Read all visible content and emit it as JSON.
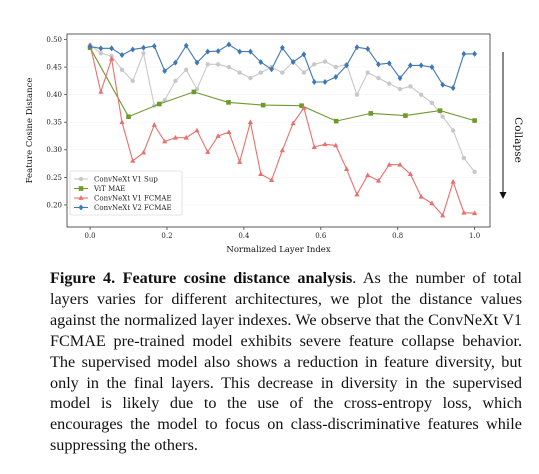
{
  "chart_data": {
    "type": "line",
    "xlabel": "Normalized Layer Index",
    "ylabel": "Feature Cosine Distance",
    "xlim": [
      -0.06,
      1.04
    ],
    "ylim": [
      0.16,
      0.51
    ],
    "xticks": [
      "0.0",
      "0.2",
      "0.4",
      "0.6",
      "0.8",
      "1.0"
    ],
    "yticks": [
      "0.20",
      "0.25",
      "0.30",
      "0.35",
      "0.40",
      "0.45",
      "0.50"
    ],
    "annotation": "Collapse",
    "legend_position": "lower-left",
    "series": [
      {
        "name": "ConvNeXt V1 Sup",
        "color": "#c8c8c8",
        "marker": "circle",
        "x": [
          0.0,
          0.028,
          0.056,
          0.083,
          0.111,
          0.139,
          0.167,
          0.194,
          0.222,
          0.25,
          0.278,
          0.306,
          0.333,
          0.361,
          0.389,
          0.417,
          0.444,
          0.472,
          0.5,
          0.528,
          0.556,
          0.583,
          0.611,
          0.639,
          0.667,
          0.694,
          0.722,
          0.75,
          0.778,
          0.806,
          0.833,
          0.861,
          0.889,
          0.917,
          0.944,
          0.972,
          1.0
        ],
        "y": [
          0.49,
          0.475,
          0.47,
          0.445,
          0.425,
          0.475,
          0.38,
          0.39,
          0.425,
          0.445,
          0.41,
          0.455,
          0.455,
          0.45,
          0.44,
          0.43,
          0.44,
          0.45,
          0.44,
          0.46,
          0.44,
          0.455,
          0.46,
          0.45,
          0.455,
          0.4,
          0.44,
          0.43,
          0.42,
          0.41,
          0.415,
          0.4,
          0.385,
          0.36,
          0.335,
          0.285,
          0.26
        ]
      },
      {
        "name": "ViT MAE",
        "color": "#6e9a2c",
        "marker": "square",
        "x": [
          0.0,
          0.1,
          0.18,
          0.27,
          0.36,
          0.45,
          0.55,
          0.64,
          0.73,
          0.82,
          0.91,
          1.0
        ],
        "y": [
          0.485,
          0.36,
          0.383,
          0.405,
          0.386,
          0.381,
          0.38,
          0.352,
          0.366,
          0.362,
          0.371,
          0.353
        ]
      },
      {
        "name": "ConvNeXt V1 FCMAE",
        "color": "#e8706e",
        "marker": "triangle",
        "x": [
          0.0,
          0.028,
          0.056,
          0.083,
          0.111,
          0.139,
          0.167,
          0.194,
          0.222,
          0.25,
          0.278,
          0.306,
          0.333,
          0.361,
          0.389,
          0.417,
          0.444,
          0.472,
          0.5,
          0.528,
          0.556,
          0.583,
          0.611,
          0.639,
          0.667,
          0.694,
          0.722,
          0.75,
          0.778,
          0.806,
          0.833,
          0.861,
          0.889,
          0.917,
          0.944,
          0.972,
          1.0
        ],
        "y": [
          0.49,
          0.405,
          0.465,
          0.35,
          0.28,
          0.295,
          0.345,
          0.315,
          0.322,
          0.322,
          0.335,
          0.296,
          0.325,
          0.332,
          0.278,
          0.35,
          0.256,
          0.245,
          0.299,
          0.348,
          0.376,
          0.305,
          0.31,
          0.308,
          0.265,
          0.219,
          0.254,
          0.244,
          0.273,
          0.273,
          0.256,
          0.215,
          0.203,
          0.181,
          0.242,
          0.186,
          0.185
        ]
      },
      {
        "name": "ConvNeXt V2 FCMAE",
        "color": "#3f78b4",
        "marker": "diamond",
        "x": [
          0.0,
          0.028,
          0.056,
          0.083,
          0.111,
          0.139,
          0.167,
          0.194,
          0.222,
          0.25,
          0.278,
          0.306,
          0.333,
          0.361,
          0.389,
          0.417,
          0.444,
          0.472,
          0.5,
          0.528,
          0.556,
          0.583,
          0.611,
          0.639,
          0.667,
          0.694,
          0.722,
          0.75,
          0.778,
          0.806,
          0.833,
          0.861,
          0.889,
          0.917,
          0.944,
          0.972,
          1.0
        ],
        "y": [
          0.487,
          0.484,
          0.484,
          0.472,
          0.482,
          0.485,
          0.488,
          0.443,
          0.458,
          0.489,
          0.458,
          0.478,
          0.479,
          0.491,
          0.478,
          0.478,
          0.459,
          0.446,
          0.485,
          0.459,
          0.473,
          0.423,
          0.423,
          0.432,
          0.453,
          0.486,
          0.483,
          0.455,
          0.457,
          0.43,
          0.453,
          0.453,
          0.45,
          0.418,
          0.412,
          0.474,
          0.474
        ]
      }
    ]
  },
  "caption": {
    "label": "Figure 4.",
    "title": "Feature cosine distance analysis",
    "text": ". As the number of total layers varies for different architectures, we plot the distance values against the normalized layer indexes. We observe that the ConvNeXt V1 FCMAE pre-trained model exhibits severe feature collapse behavior. The supervised model also shows a reduction in feature diversity, but only in the final layers. This decrease in diversity in the supervised model is likely due to the use of the cross-entropy loss, which encourages the model to focus on class-discriminative features while suppressing the others."
  }
}
